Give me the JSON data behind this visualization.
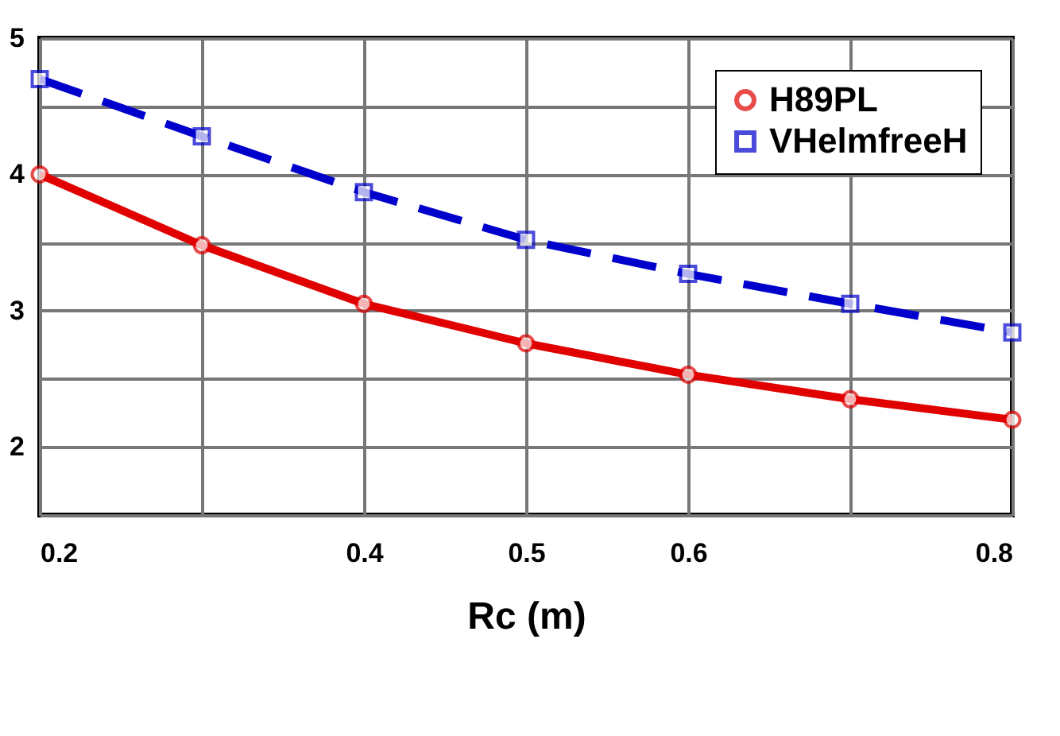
{
  "chart_data": {
    "type": "line",
    "xlabel": "Rc (m)",
    "x": [
      0.2,
      0.3,
      0.4,
      0.5,
      0.6,
      0.7,
      0.8
    ],
    "series": [
      {
        "name": "H89PL",
        "color": "#e00000",
        "values": [
          4.0,
          3.48,
          3.05,
          2.76,
          2.53,
          2.35,
          2.2
        ],
        "marker": "circle",
        "line_style": "solid"
      },
      {
        "name": "VHelmfreeH",
        "color": "#0000cc",
        "values": [
          4.7,
          4.28,
          3.87,
          3.52,
          3.27,
          3.05,
          2.84
        ],
        "marker": "square",
        "line_style": "dashed"
      }
    ],
    "xlim": [
      0.2,
      0.8
    ],
    "xticks": [
      0.2,
      {
        "value": 0.3,
        "label": null
      },
      0.4,
      0.5,
      0.6,
      {
        "value": 0.7,
        "label": null
      },
      0.8
    ],
    "ylim": [
      1.5,
      5
    ],
    "yticks": [
      {
        "value": 1.5,
        "label": null
      },
      2,
      {
        "value": 2.5,
        "label": null
      },
      3,
      {
        "value": 3.5,
        "label": null
      },
      4,
      {
        "value": 4.5,
        "label": null
      },
      5
    ],
    "grid": true,
    "legend": "top right"
  }
}
